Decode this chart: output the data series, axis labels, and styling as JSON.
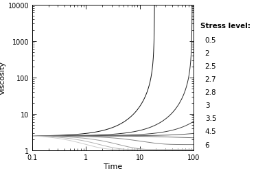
{
  "title": "",
  "xlabel": "Time",
  "ylabel": "Viscosity",
  "xlim": [
    0.1,
    100
  ],
  "ylim": [
    1,
    10000
  ],
  "stress_levels": [
    0.5,
    2,
    2.5,
    2.7,
    2.8,
    3,
    3.5,
    4.5,
    6
  ],
  "legend_title": "Stress level:",
  "background_color": "#ffffff",
  "eta0": 2.5,
  "sigma_c": 2.75,
  "t_points": 3000
}
